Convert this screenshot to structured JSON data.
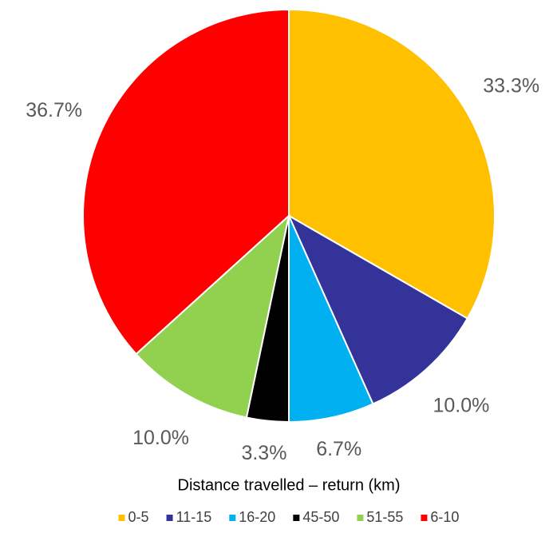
{
  "chart_data": {
    "type": "pie",
    "title": "Distance travelled – return (km)",
    "categories": [
      "0-5",
      "11-15",
      "16-20",
      "45-50",
      "51-55",
      "6-10"
    ],
    "values": [
      33.3,
      10.0,
      6.7,
      3.3,
      10.0,
      36.7
    ],
    "value_labels": [
      "33.3%",
      "10.0%",
      "6.7%",
      "3.3%",
      "10.0%",
      "36.7%"
    ],
    "colors": [
      "#FFC000",
      "#333399",
      "#00B0F0",
      "#000000",
      "#92D050",
      "#FF0000"
    ],
    "legend": "bottom"
  }
}
